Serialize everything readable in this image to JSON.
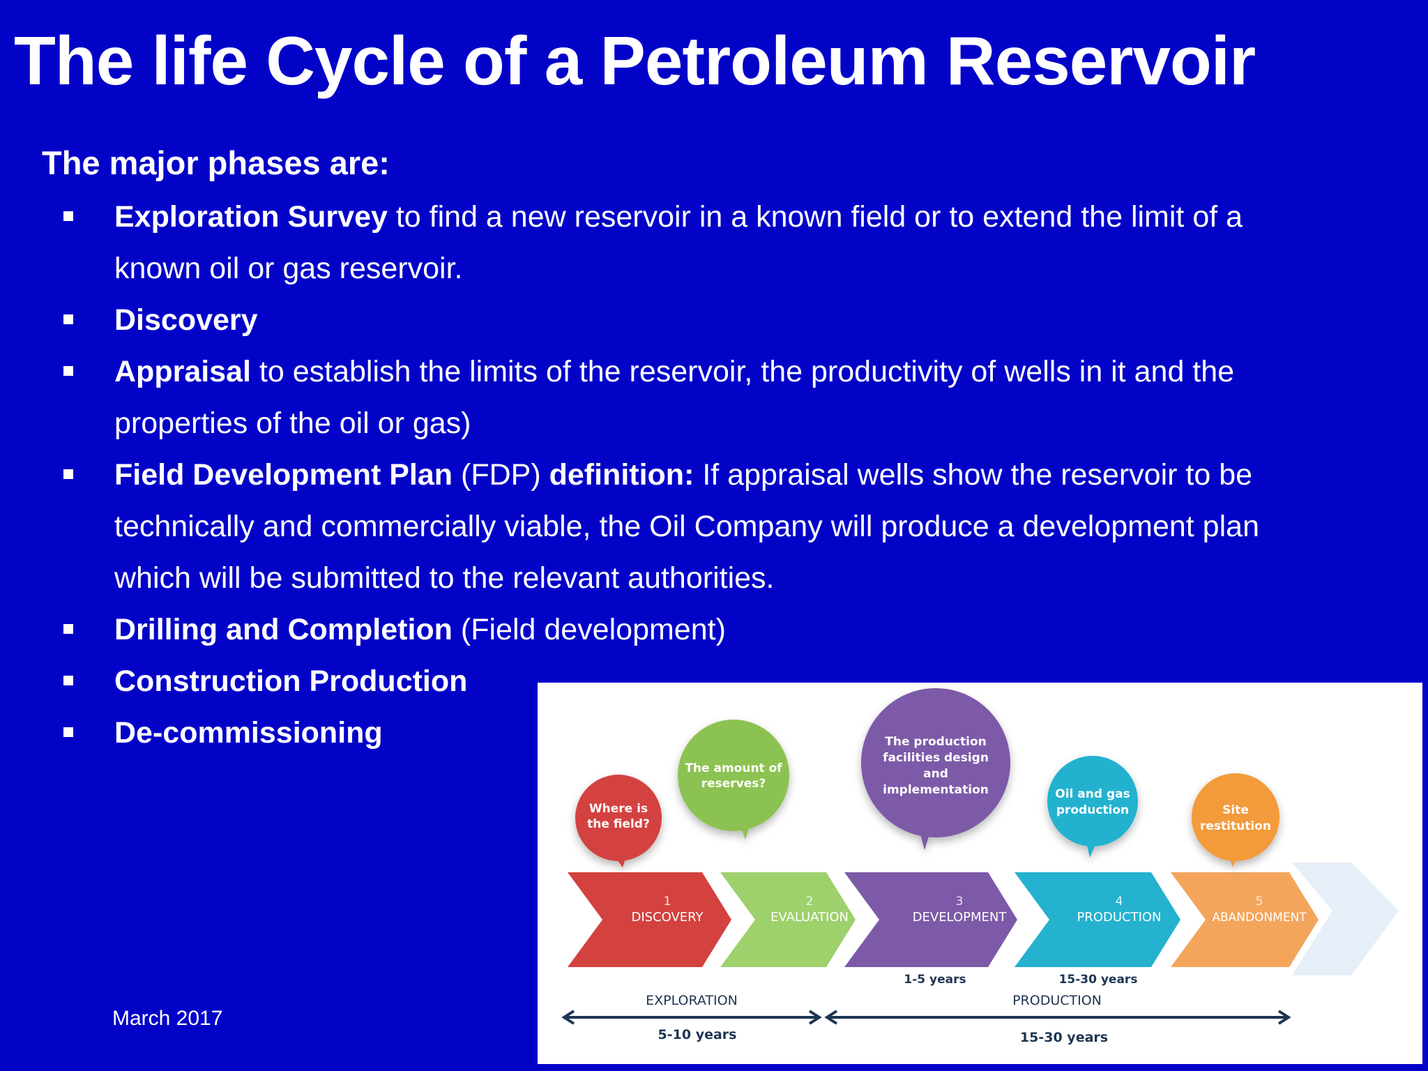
{
  "slide": {
    "title": "The life Cycle of a Petroleum Reservoir",
    "intro": "The major phases are:",
    "footer_date": "March 2017"
  },
  "bullets": [
    {
      "bold": "Exploration Survey",
      "rest": " to find a new reservoir in a known field or to extend the limit of a known oil or gas reservoir."
    },
    {
      "bold": "Discovery",
      "rest": ""
    },
    {
      "bold": "Appraisal",
      "rest": " to establish the limits of the reservoir, the productivity of wells in it and the properties of the oil or gas)"
    },
    {
      "bold": "Field Development Plan",
      "mid": " (FDP) ",
      "bold2": "definition:",
      "rest": " If appraisal wells show the reservoir to be technically and commercially viable, the Oil Company will produce a development plan which will be submitted to the relevant authorities."
    },
    {
      "bold": "Drilling and Completion",
      "rest": " (Field development)"
    },
    {
      "bold": "Construction Production",
      "rest": ""
    },
    {
      "bold": "De-commissioning",
      "rest": ""
    }
  ],
  "diagram": {
    "phases": [
      {
        "number": "1",
        "name": "DISCOVERY",
        "color": "#d3423f",
        "bubble_lines": [
          "Where is",
          "the field?"
        ],
        "bubble_color": "#d3423f"
      },
      {
        "number": "2",
        "name": "EVALUATION",
        "color": "#9ed06c",
        "bubble_lines": [
          "The amount of",
          "reserves?"
        ],
        "bubble_color": "#8cc251"
      },
      {
        "number": "3",
        "name": "DEVELOPMENT",
        "color": "#7d5aa8",
        "bubble_lines": [
          "The production",
          "facilities design",
          "and",
          "implementation"
        ],
        "bubble_color": "#7d5aa8"
      },
      {
        "number": "4",
        "name": "PRODUCTION",
        "color": "#24b2cf",
        "bubble_lines": [
          "Oil and gas",
          "production"
        ],
        "bubble_color": "#24b2cf"
      },
      {
        "number": "5",
        "name": "ABANDONMENT",
        "color": "#f4a55c",
        "bubble_lines": [
          "Site",
          "restitution"
        ],
        "bubble_color": "#f39a3b"
      }
    ],
    "duration_development": "1-5 years",
    "duration_production": "15-30 years",
    "stage_exploration": "EXPLORATION",
    "stage_exploration_years": "5-10 years",
    "stage_production": "PRODUCTION",
    "stage_production_years": "15-30 years"
  }
}
